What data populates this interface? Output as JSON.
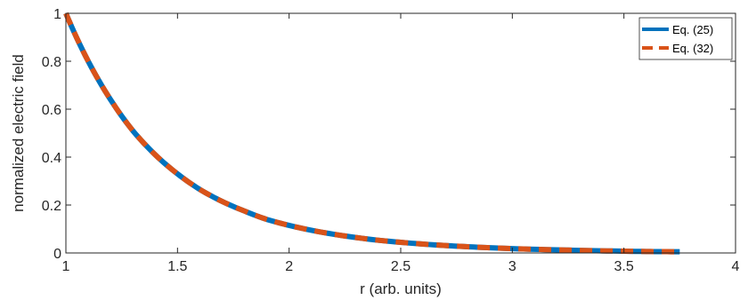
{
  "chart_data": {
    "type": "line",
    "title": "",
    "xlabel": "r (arb. units)",
    "ylabel": "normalized electric field",
    "xlim": [
      1,
      4
    ],
    "ylim": [
      0,
      1
    ],
    "xticks": [
      "1",
      "1.5",
      "2",
      "2.5",
      "3",
      "3.5",
      "4"
    ],
    "yticks": [
      "0",
      "0.2",
      "0.4",
      "0.6",
      "0.8",
      "1"
    ],
    "grid": false,
    "legend_position": "top-right",
    "x": [
      1.0,
      1.1,
      1.2,
      1.3,
      1.4,
      1.5,
      1.6,
      1.7,
      1.8,
      1.9,
      2.0,
      2.2,
      2.4,
      2.6,
      2.8,
      3.0,
      3.2,
      3.4,
      3.6,
      3.75
    ],
    "series": [
      {
        "name": "Eq. (25)",
        "color": "#0072BD",
        "style": "solid",
        "values": [
          1.0,
          0.8,
          0.64,
          0.51,
          0.41,
          0.33,
          0.265,
          0.215,
          0.175,
          0.14,
          0.115,
          0.078,
          0.053,
          0.037,
          0.026,
          0.018,
          0.013,
          0.009,
          0.006,
          0.005
        ]
      },
      {
        "name": "Eq. (32)",
        "color": "#D95319",
        "style": "dashed",
        "values": [
          1.0,
          0.8,
          0.64,
          0.51,
          0.41,
          0.33,
          0.265,
          0.215,
          0.175,
          0.14,
          0.115,
          0.078,
          0.053,
          0.037,
          0.026,
          0.018,
          0.013,
          0.009,
          0.006,
          0.005
        ]
      }
    ]
  }
}
